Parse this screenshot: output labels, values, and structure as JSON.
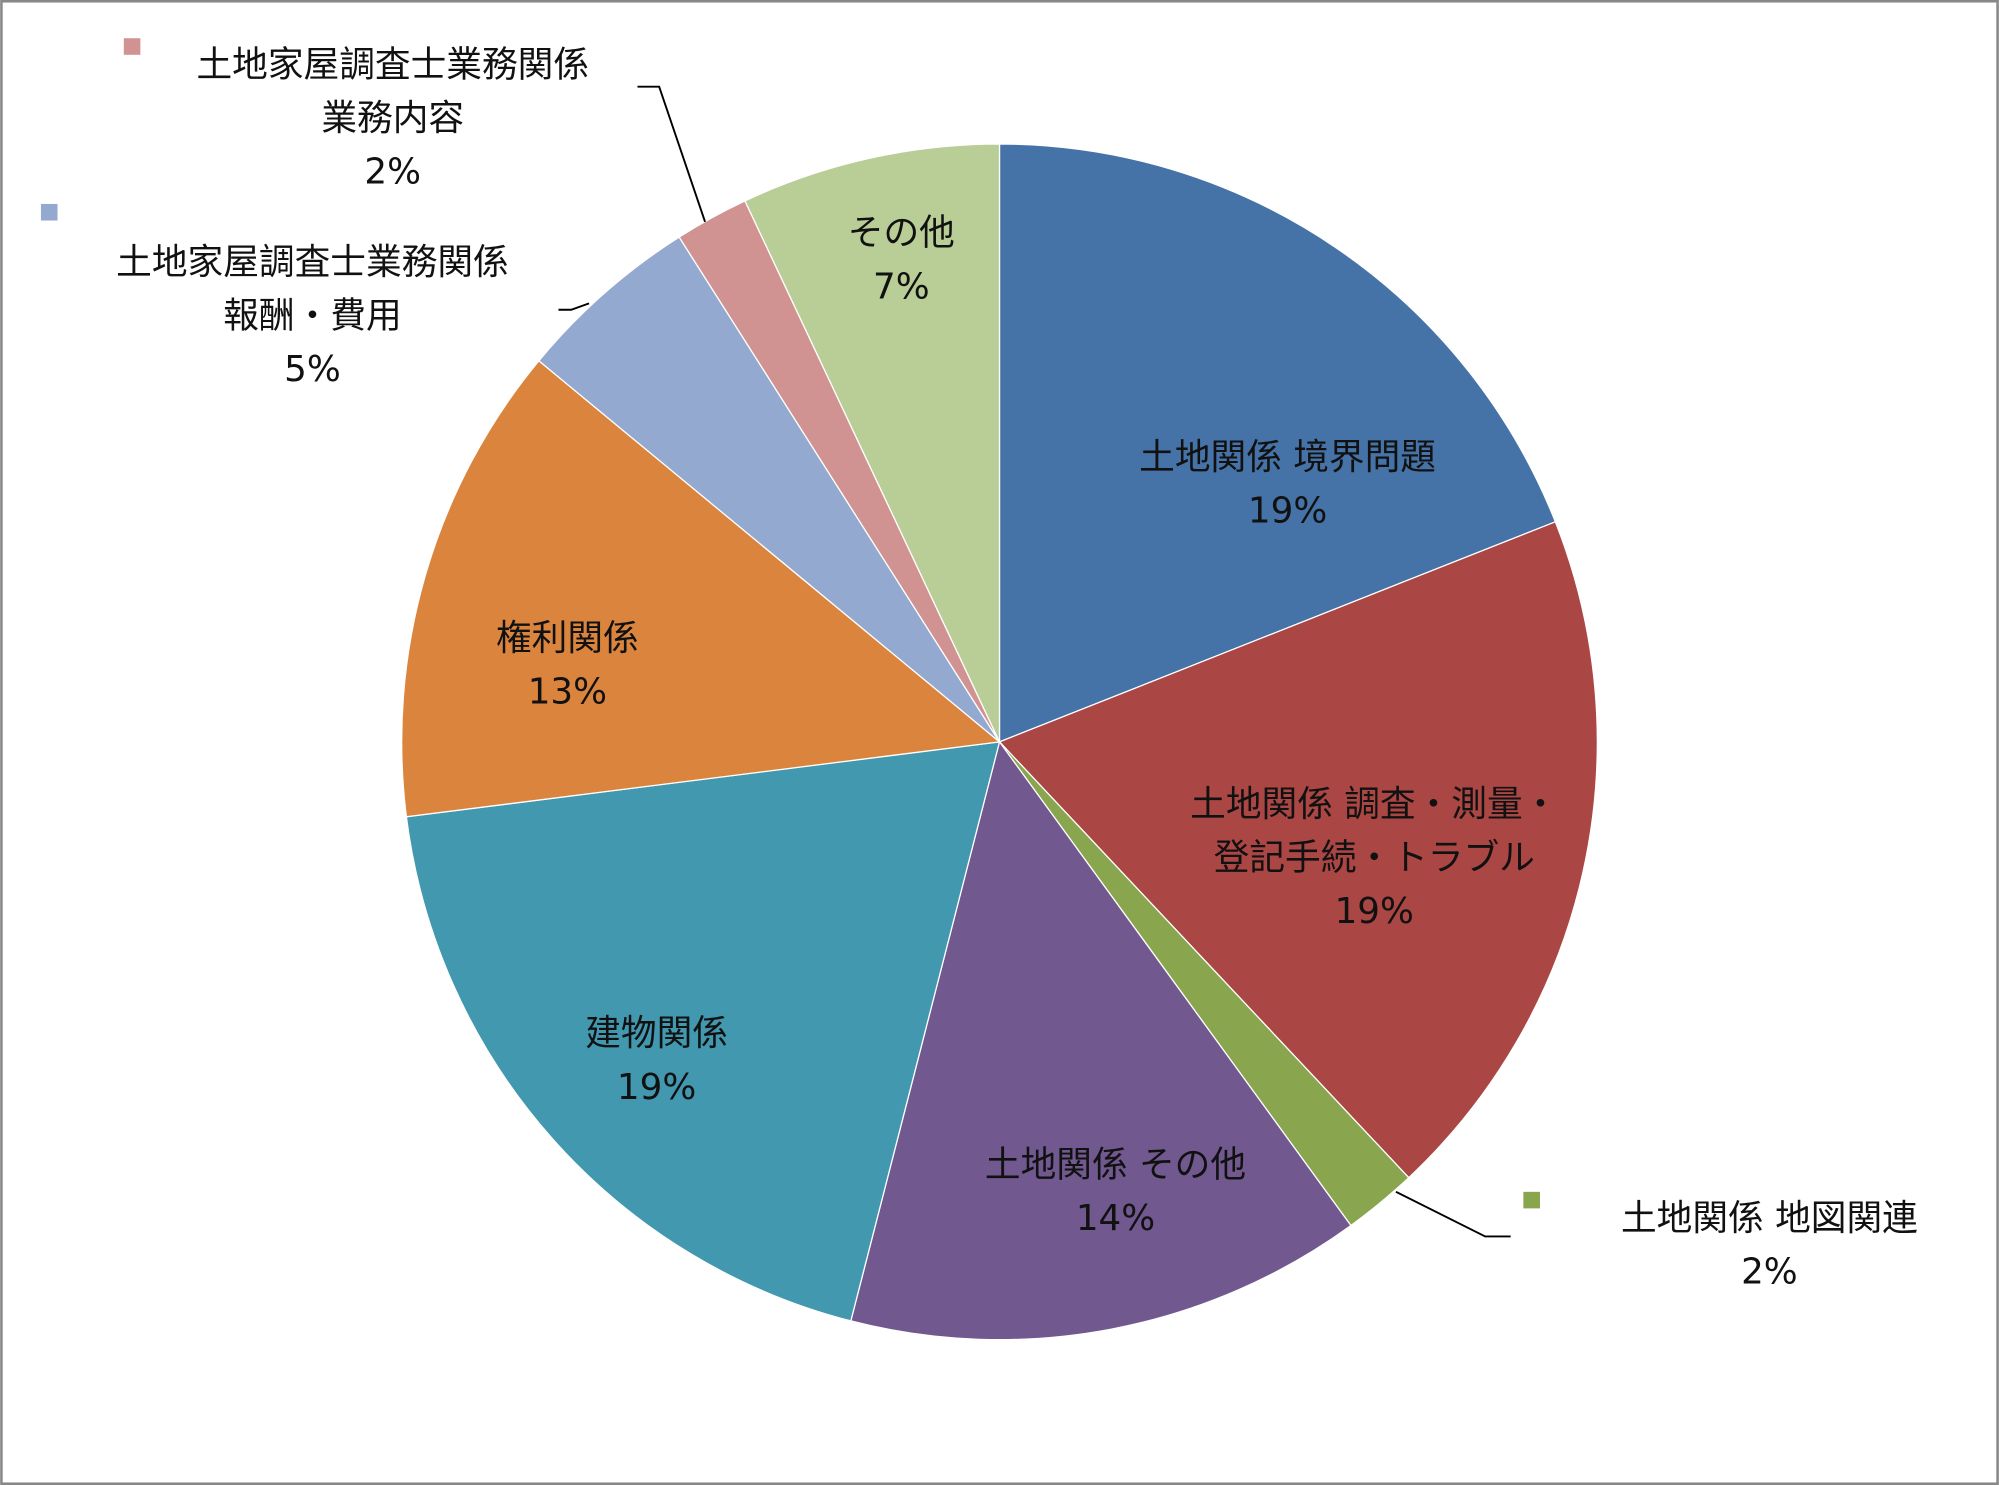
{
  "chart_data": {
    "type": "pie",
    "categories": [
      "土地関係 境界問題",
      "土地関係 調査・測量・登記手続・トラブル",
      "土地関係 地図関連",
      "土地関係 その他",
      "建物関係",
      "権利関係",
      "土地家屋調査士業務関係 報酬・費用",
      "土地家屋調査士業務関係 業務内容",
      "その他"
    ],
    "label_lines": [
      [
        "土地関係 境界問題"
      ],
      [
        "土地関係 調査・測量・",
        "登記手続・トラブル"
      ],
      [
        "土地関係 地図関連"
      ],
      [
        "土地関係 その他"
      ],
      [
        "建物関係"
      ],
      [
        "権利関係"
      ],
      [
        "土地家屋調査士業務関係",
        "報酬・費用"
      ],
      [
        "土地家屋調査士業務関係",
        "業務内容"
      ],
      [
        "その他"
      ]
    ],
    "values": [
      19,
      19,
      2,
      14,
      19,
      13,
      5,
      2,
      7
    ],
    "value_labels": [
      "19%",
      "19%",
      "2%",
      "14%",
      "19%",
      "13%",
      "5%",
      "2%",
      "7%"
    ],
    "colors": [
      "#4572A7",
      "#AA4643",
      "#89A54E",
      "#71588F",
      "#4198AF",
      "#DB843D",
      "#93A9CF",
      "#D19392",
      "#B9CD96"
    ],
    "start_angle": "12 o'clock",
    "direction": "clockwise",
    "legend": "none"
  }
}
